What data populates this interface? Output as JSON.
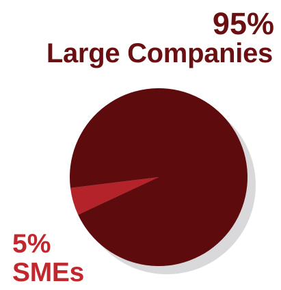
{
  "chart_data": {
    "type": "pie",
    "slices": [
      {
        "label": "Large Companies",
        "percent_text": "95%",
        "value": 95,
        "color": "#5e0b0d"
      },
      {
        "label": "SMEs",
        "percent_text": "5%",
        "value": 5,
        "color": "#b5232a"
      }
    ],
    "shadow_color": "#d9d9db"
  }
}
